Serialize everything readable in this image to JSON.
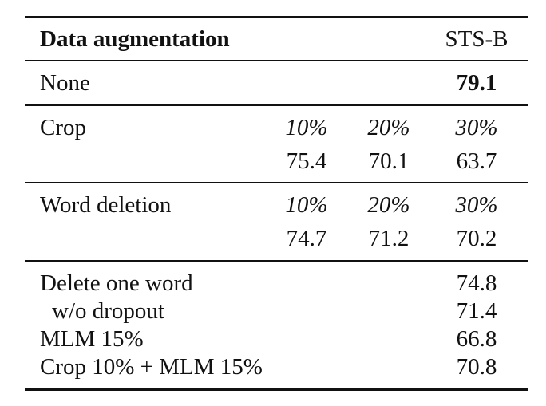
{
  "header": {
    "method": "Data augmentation",
    "metric": "STS-B"
  },
  "rows": {
    "none": {
      "label": "None",
      "value": "79.1"
    },
    "crop": {
      "label": "Crop",
      "rates": [
        "10%",
        "20%",
        "30%"
      ],
      "values": [
        "75.4",
        "70.1",
        "63.7"
      ]
    },
    "word_deletion": {
      "label": "Word deletion",
      "rates": [
        "10%",
        "20%",
        "30%"
      ],
      "values": [
        "74.7",
        "71.2",
        "70.2"
      ]
    },
    "others": [
      {
        "label": "Delete one word",
        "value": "74.8"
      },
      {
        "label": "w/o dropout",
        "value": "71.4"
      },
      {
        "label": "MLM 15%",
        "value": "66.8"
      },
      {
        "label": "Crop 10% + MLM 15%",
        "value": "70.8"
      }
    ]
  }
}
